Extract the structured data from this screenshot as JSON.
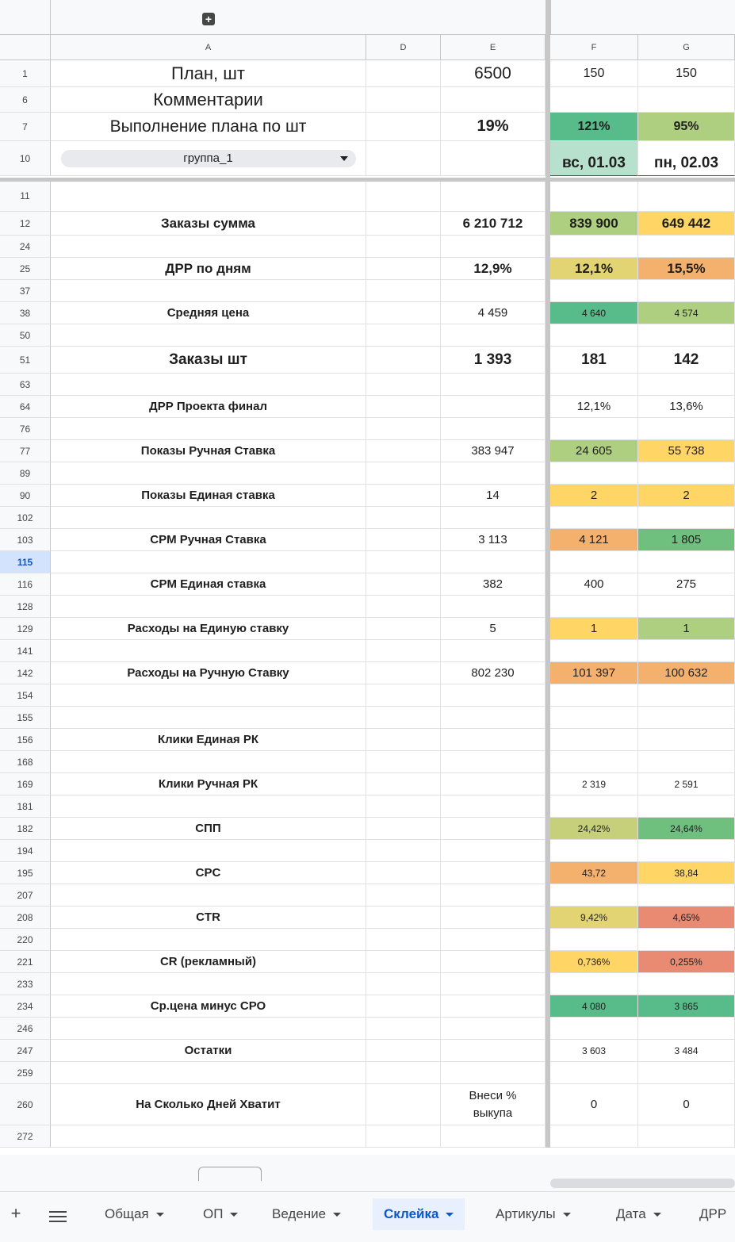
{
  "columns": [
    {
      "id": "A",
      "label": "A"
    },
    {
      "id": "D",
      "label": "D"
    },
    {
      "id": "E",
      "label": "E"
    },
    {
      "id": "F",
      "label": "F"
    },
    {
      "id": "G",
      "label": "G"
    }
  ],
  "colors": {
    "green_dark": "#57bb8a",
    "green_mid": "#6fbf7f",
    "green_light": "#aecf7f",
    "yellow": "#ffd666",
    "yellow_olive": "#e2d373",
    "orange": "#f4b06d",
    "red": "#e98a72",
    "mint": "#b7e1cd",
    "olive": "#c6d07a"
  },
  "rows": [
    {
      "num": "1",
      "A": "План, шт",
      "D": "",
      "E": "6500",
      "F": "150",
      "G": "150"
    },
    {
      "num": "6",
      "A": "Комментарии",
      "D": "",
      "E": "",
      "F": "",
      "G": ""
    },
    {
      "num": "7",
      "A": "Выполнение плана по шт",
      "D": "",
      "E": "19%",
      "F": "121%",
      "G": "95%",
      "F_bg": "#57bb8a",
      "G_bg": "#aecf7f"
    },
    {
      "num": "10",
      "A": "группа_1",
      "D": "",
      "E": "",
      "F": "вс, 01.03",
      "G": "пн, 02.03",
      "F_bg": "#b7e1cd"
    },
    {
      "num": "11",
      "A": "",
      "D": "",
      "E": "",
      "F": "",
      "G": ""
    },
    {
      "num": "12",
      "A": "Заказы сумма",
      "D": "",
      "E": "6 210 712",
      "F": "839 900",
      "G": "649 442",
      "F_bg": "#aecf7f",
      "G_bg": "#ffd666"
    },
    {
      "num": "24",
      "A": "",
      "D": "",
      "E": "",
      "F": "",
      "G": ""
    },
    {
      "num": "25",
      "A": "ДРР по дням",
      "D": "",
      "E": "12,9%",
      "F": "12,1%",
      "G": "15,5%",
      "F_bg": "#e2d373",
      "G_bg": "#f4b06d"
    },
    {
      "num": "37",
      "A": "",
      "D": "",
      "E": "",
      "F": "",
      "G": ""
    },
    {
      "num": "38",
      "A": "Средняя цена",
      "D": "",
      "E": "4 459",
      "F": "4 640",
      "G": "4 574",
      "F_bg": "#57bb8a",
      "G_bg": "#aecf7f"
    },
    {
      "num": "50",
      "A": "",
      "D": "",
      "E": "",
      "F": "",
      "G": ""
    },
    {
      "num": "51",
      "A": "Заказы шт",
      "D": "",
      "E": "1 393",
      "F": "181",
      "G": "142"
    },
    {
      "num": "63",
      "A": "",
      "D": "",
      "E": "",
      "F": "",
      "G": ""
    },
    {
      "num": "64",
      "A": "ДРР Проекта финал",
      "D": "",
      "E": "",
      "F": "12,1%",
      "G": "13,6%"
    },
    {
      "num": "76",
      "A": "",
      "D": "",
      "E": "",
      "F": "",
      "G": ""
    },
    {
      "num": "77",
      "A": "Показы Ручная Ставка",
      "D": "",
      "E": "383 947",
      "F": "24 605",
      "G": "55 738",
      "F_bg": "#aecf7f",
      "G_bg": "#ffd666"
    },
    {
      "num": "89",
      "A": "",
      "D": "",
      "E": "",
      "F": "",
      "G": ""
    },
    {
      "num": "90",
      "A": "Показы Единая ставка",
      "D": "",
      "E": "14",
      "F": "2",
      "G": "2",
      "F_bg": "#ffd666",
      "G_bg": "#ffd666"
    },
    {
      "num": "102",
      "A": "",
      "D": "",
      "E": "",
      "F": "",
      "G": ""
    },
    {
      "num": "103",
      "A": "CPM Ручная Ставка",
      "D": "",
      "E": "3 113",
      "F": "4 121",
      "G": "1 805",
      "F_bg": "#f4b06d",
      "G_bg": "#6fbf7f"
    },
    {
      "num": "115",
      "A": "",
      "D": "",
      "E": "",
      "F": "",
      "G": "",
      "selected": true
    },
    {
      "num": "116",
      "A": "CPM Единая ставка",
      "D": "",
      "E": "382",
      "F": "400",
      "G": "275"
    },
    {
      "num": "128",
      "A": "",
      "D": "",
      "E": "",
      "F": "",
      "G": ""
    },
    {
      "num": "129",
      "A": "Расходы на Единую ставку",
      "D": "",
      "E": "5",
      "F": "1",
      "G": "1",
      "F_bg": "#ffd666",
      "G_bg": "#aecf7f"
    },
    {
      "num": "141",
      "A": "",
      "D": "",
      "E": "",
      "F": "",
      "G": ""
    },
    {
      "num": "142",
      "A": "Расходы на Ручную Ставку",
      "D": "",
      "E": "802 230",
      "F": "101 397",
      "G": "100 632",
      "F_bg": "#f4b06d",
      "G_bg": "#f4b06d"
    },
    {
      "num": "154",
      "A": "",
      "D": "",
      "E": "",
      "F": "",
      "G": ""
    },
    {
      "num": "155",
      "A": "",
      "D": "",
      "E": "",
      "F": "",
      "G": ""
    },
    {
      "num": "156",
      "A": "Клики Единая РК",
      "D": "",
      "E": "",
      "F": "",
      "G": ""
    },
    {
      "num": "168",
      "A": "",
      "D": "",
      "E": "",
      "F": "",
      "G": ""
    },
    {
      "num": "169",
      "A": "Клики Ручная РК",
      "D": "",
      "E": "",
      "F": "2 319",
      "G": "2 591"
    },
    {
      "num": "181",
      "A": "",
      "D": "",
      "E": "",
      "F": "",
      "G": ""
    },
    {
      "num": "182",
      "A": "СПП",
      "D": "",
      "E": "",
      "F": "24,42%",
      "G": "24,64%",
      "F_bg": "#c6d07a",
      "G_bg": "#6fbf7f"
    },
    {
      "num": "194",
      "A": "",
      "D": "",
      "E": "",
      "F": "",
      "G": ""
    },
    {
      "num": "195",
      "A": "CPC",
      "D": "",
      "E": "",
      "F": "43,72",
      "G": "38,84",
      "F_bg": "#f4b06d",
      "G_bg": "#ffd666"
    },
    {
      "num": "207",
      "A": "",
      "D": "",
      "E": "",
      "F": "",
      "G": ""
    },
    {
      "num": "208",
      "A": "CTR",
      "D": "",
      "E": "",
      "F": "9,42%",
      "G": "4,65%",
      "F_bg": "#e2d373",
      "G_bg": "#e98a72"
    },
    {
      "num": "220",
      "A": "",
      "D": "",
      "E": "",
      "F": "",
      "G": ""
    },
    {
      "num": "221",
      "A": "CR (рекламный)",
      "D": "",
      "E": "",
      "F": "0,736%",
      "G": "0,255%",
      "F_bg": "#ffd666",
      "G_bg": "#e98a72"
    },
    {
      "num": "233",
      "A": "",
      "D": "",
      "E": "",
      "F": "",
      "G": ""
    },
    {
      "num": "234",
      "A": "Ср.цена минус СРО",
      "D": "",
      "E": "",
      "F": "4 080",
      "G": "3 865",
      "F_bg": "#57bb8a",
      "G_bg": "#57bb8a"
    },
    {
      "num": "246",
      "A": "",
      "D": "",
      "E": "",
      "F": "",
      "G": ""
    },
    {
      "num": "247",
      "A": "Остатки",
      "D": "",
      "E": "",
      "F": "3 603",
      "G": "3 484"
    },
    {
      "num": "259",
      "A": "",
      "D": "",
      "E": "",
      "F": "",
      "G": ""
    },
    {
      "num": "260",
      "A": "На Сколько Дней Хватит",
      "D": "",
      "E": "Внеси %\nвыкупа",
      "F": "0",
      "G": "0"
    },
    {
      "num": "272",
      "A": "",
      "D": "",
      "E": "",
      "F": "",
      "G": ""
    }
  ],
  "tabs": [
    {
      "label": "Общая",
      "active": false
    },
    {
      "label": "ОП",
      "active": false
    },
    {
      "label": "Ведение",
      "active": false
    },
    {
      "label": "Склейка",
      "active": true
    },
    {
      "label": "Артикулы",
      "active": false
    },
    {
      "label": "Дата",
      "active": false
    },
    {
      "label": "ДРР",
      "active": false
    }
  ],
  "tab_controls": {
    "add": "+"
  },
  "toolbar": {
    "expand": "+"
  }
}
